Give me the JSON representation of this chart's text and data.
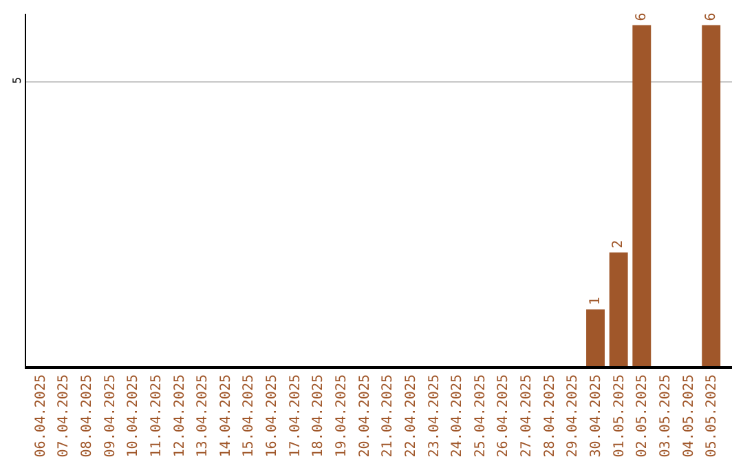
{
  "chart_data": {
    "type": "bar",
    "categories": [
      "06.04.2025",
      "07.04.2025",
      "08.04.2025",
      "09.04.2025",
      "10.04.2025",
      "11.04.2025",
      "12.04.2025",
      "13.04.2025",
      "14.04.2025",
      "15.04.2025",
      "16.04.2025",
      "17.04.2025",
      "18.04.2025",
      "19.04.2025",
      "20.04.2025",
      "21.04.2025",
      "22.04.2025",
      "23.04.2025",
      "24.04.2025",
      "25.04.2025",
      "26.04.2025",
      "27.04.2025",
      "28.04.2025",
      "29.04.2025",
      "30.04.2025",
      "01.05.2025",
      "02.05.2025",
      "03.05.2025",
      "04.05.2025",
      "05.05.2025"
    ],
    "values": [
      null,
      null,
      null,
      null,
      null,
      null,
      null,
      null,
      null,
      null,
      null,
      null,
      null,
      null,
      null,
      null,
      null,
      null,
      null,
      null,
      null,
      null,
      null,
      null,
      1,
      2,
      6,
      null,
      null,
      6
    ],
    "data_labels": true,
    "color": "#a0572a",
    "ylim": [
      0,
      6.2
    ],
    "yticks": [
      5
    ],
    "grid": "y"
  }
}
